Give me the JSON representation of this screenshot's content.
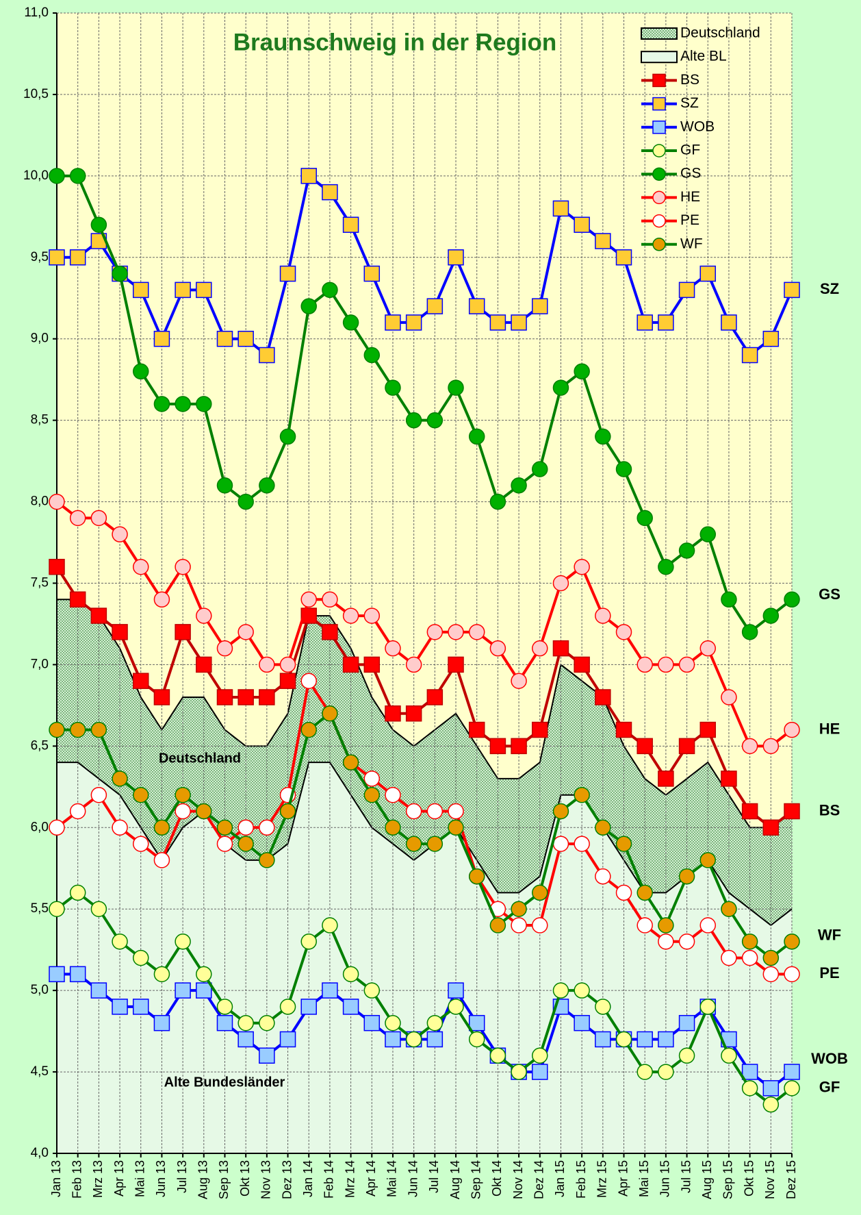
{
  "chart_data": {
    "type": "line",
    "title": "Braunschweig in der Region",
    "categories": [
      "Jan 13",
      "Feb 13",
      "Mrz 13",
      "Apr 13",
      "Mai 13",
      "Jun 13",
      "Jul 13",
      "Aug 13",
      "Sep 13",
      "Okt 13",
      "Nov 13",
      "Dez 13",
      "Jan 14",
      "Feb 14",
      "Mrz 14",
      "Apr 14",
      "Mai 14",
      "Jun 14",
      "Jul 14",
      "Aug 14",
      "Sep 14",
      "Okt 14",
      "Nov 14",
      "Dez 14",
      "Jan 15",
      "Feb 15",
      "Mrz 15",
      "Apr 15",
      "Mai 15",
      "Jun 15",
      "Jul 15",
      "Aug 15",
      "Sep 15",
      "Okt 15",
      "Nov 15",
      "Dez 15"
    ],
    "ylim": [
      4.0,
      11.0
    ],
    "yticks": [
      {
        "value": 4.0,
        "label": "4,0"
      },
      {
        "value": 4.5,
        "label": "4,5"
      },
      {
        "value": 5.0,
        "label": "5,0"
      },
      {
        "value": 5.5,
        "label": "5,5"
      },
      {
        "value": 6.0,
        "label": "6,0"
      },
      {
        "value": 6.5,
        "label": "6,5"
      },
      {
        "value": 7.0,
        "label": "7,0"
      },
      {
        "value": 7.5,
        "label": "7,5"
      },
      {
        "value": 8.0,
        "label": "8,0"
      },
      {
        "value": 8.5,
        "label": "8,5"
      },
      {
        "value": 9.0,
        "label": "9,0"
      },
      {
        "value": 9.5,
        "label": "9,5"
      },
      {
        "value": 10.0,
        "label": "10,0"
      },
      {
        "value": 10.5,
        "label": "10,5"
      },
      {
        "value": 11.0,
        "label": "11,0"
      }
    ],
    "grid": true,
    "areas": [
      {
        "name": "Deutschland",
        "color": "#9fd09f",
        "values": [
          7.4,
          7.4,
          7.3,
          7.1,
          6.8,
          6.6,
          6.8,
          6.8,
          6.6,
          6.5,
          6.5,
          6.7,
          7.3,
          7.3,
          7.1,
          6.8,
          6.6,
          6.5,
          6.6,
          6.7,
          6.5,
          6.3,
          6.3,
          6.4,
          7.0,
          6.9,
          6.8,
          6.5,
          6.3,
          6.2,
          6.3,
          6.4,
          6.2,
          6.0,
          6.0,
          6.1
        ]
      },
      {
        "name": "Alte BL",
        "color": "#e6f9e6",
        "values": [
          6.4,
          6.4,
          6.3,
          6.2,
          6.0,
          5.8,
          6.0,
          6.1,
          5.9,
          5.8,
          5.8,
          5.9,
          6.4,
          6.4,
          6.2,
          6.0,
          5.9,
          5.8,
          5.9,
          6.0,
          5.8,
          5.6,
          5.6,
          5.7,
          6.2,
          6.2,
          6.0,
          5.8,
          5.6,
          5.6,
          5.7,
          5.8,
          5.6,
          5.5,
          5.4,
          5.5
        ]
      }
    ],
    "series": [
      {
        "name": "BS",
        "color": "#c00000",
        "marker": "square",
        "marker_color": "#ff0000",
        "values": [
          7.6,
          7.4,
          7.3,
          7.2,
          6.9,
          6.8,
          7.2,
          7.0,
          6.8,
          6.8,
          6.8,
          6.9,
          7.3,
          7.2,
          7.0,
          7.0,
          6.7,
          6.7,
          6.8,
          7.0,
          6.6,
          6.5,
          6.5,
          6.6,
          7.1,
          7.0,
          6.8,
          6.6,
          6.5,
          6.3,
          6.5,
          6.6,
          6.3,
          6.1,
          6.0,
          6.1
        ]
      },
      {
        "name": "SZ",
        "color": "#0000ff",
        "marker": "square",
        "marker_color": "#ffcc33",
        "values": [
          9.5,
          9.5,
          9.6,
          9.4,
          9.3,
          9.0,
          9.3,
          9.3,
          9.0,
          9.0,
          8.9,
          9.4,
          10.0,
          9.9,
          9.7,
          9.4,
          9.1,
          9.1,
          9.2,
          9.5,
          9.2,
          9.1,
          9.1,
          9.2,
          9.8,
          9.7,
          9.6,
          9.5,
          9.1,
          9.1,
          9.3,
          9.4,
          9.1,
          8.9,
          9.0,
          9.3
        ]
      },
      {
        "name": "WOB",
        "color": "#0000ff",
        "marker": "square",
        "marker_color": "#99ccff",
        "values": [
          5.1,
          5.1,
          5.0,
          4.9,
          4.9,
          4.8,
          5.0,
          5.0,
          4.8,
          4.7,
          4.6,
          4.7,
          4.9,
          5.0,
          4.9,
          4.8,
          4.7,
          4.7,
          4.7,
          5.0,
          4.8,
          4.6,
          4.5,
          4.5,
          4.9,
          4.8,
          4.7,
          4.7,
          4.7,
          4.7,
          4.8,
          4.9,
          4.7,
          4.5,
          4.4,
          4.5
        ]
      },
      {
        "name": "GF",
        "color": "#008000",
        "marker": "circle",
        "marker_color": "#ffff99",
        "values": [
          5.5,
          5.6,
          5.5,
          5.3,
          5.2,
          5.1,
          5.3,
          5.1,
          4.9,
          4.8,
          4.8,
          4.9,
          5.3,
          5.4,
          5.1,
          5.0,
          4.8,
          4.7,
          4.8,
          4.9,
          4.7,
          4.6,
          4.5,
          4.6,
          5.0,
          5.0,
          4.9,
          4.7,
          4.5,
          4.5,
          4.6,
          4.9,
          4.6,
          4.4,
          4.3,
          4.4
        ]
      },
      {
        "name": "GS",
        "color": "#008000",
        "marker": "circle",
        "marker_color": "#00b000",
        "values": [
          10.0,
          10.0,
          9.7,
          9.4,
          8.8,
          8.6,
          8.6,
          8.6,
          8.1,
          8.0,
          8.1,
          8.4,
          9.2,
          9.3,
          9.1,
          8.9,
          8.7,
          8.5,
          8.5,
          8.7,
          8.4,
          8.0,
          8.1,
          8.2,
          8.7,
          8.8,
          8.4,
          8.2,
          7.9,
          7.6,
          7.7,
          7.8,
          7.4,
          7.2,
          7.3,
          7.4
        ]
      },
      {
        "name": "HE",
        "color": "#ff0000",
        "marker": "circle",
        "marker_color": "#ffcccc",
        "values": [
          8.0,
          7.9,
          7.9,
          7.8,
          7.6,
          7.4,
          7.6,
          7.3,
          7.1,
          7.2,
          7.0,
          7.0,
          7.4,
          7.4,
          7.3,
          7.3,
          7.1,
          7.0,
          7.2,
          7.2,
          7.2,
          7.1,
          6.9,
          7.1,
          7.5,
          7.6,
          7.3,
          7.2,
          7.0,
          7.0,
          7.0,
          7.1,
          6.8,
          6.5,
          6.5,
          6.6
        ]
      },
      {
        "name": "PE",
        "color": "#ff0000",
        "marker": "circle",
        "marker_color": "#ffffff",
        "values": [
          6.0,
          6.1,
          6.2,
          6.0,
          5.9,
          5.8,
          6.1,
          6.1,
          5.9,
          6.0,
          6.0,
          6.2,
          6.9,
          6.7,
          6.4,
          6.3,
          6.2,
          6.1,
          6.1,
          6.1,
          5.7,
          5.5,
          5.4,
          5.4,
          5.9,
          5.9,
          5.7,
          5.6,
          5.4,
          5.3,
          5.3,
          5.4,
          5.2,
          5.2,
          5.1,
          5.1
        ]
      },
      {
        "name": "WF",
        "color": "#008000",
        "marker": "circle",
        "marker_color": "#e69a00",
        "values": [
          6.6,
          6.6,
          6.6,
          6.3,
          6.2,
          6.0,
          6.2,
          6.1,
          6.0,
          5.9,
          5.8,
          6.1,
          6.6,
          6.7,
          6.4,
          6.2,
          6.0,
          5.9,
          5.9,
          6.0,
          5.7,
          5.4,
          5.5,
          5.6,
          6.1,
          6.2,
          6.0,
          5.9,
          5.6,
          5.4,
          5.7,
          5.8,
          5.5,
          5.3,
          5.2,
          5.3
        ]
      }
    ],
    "annotations": [
      "Deutschland",
      "Alte Bundesländer"
    ]
  }
}
